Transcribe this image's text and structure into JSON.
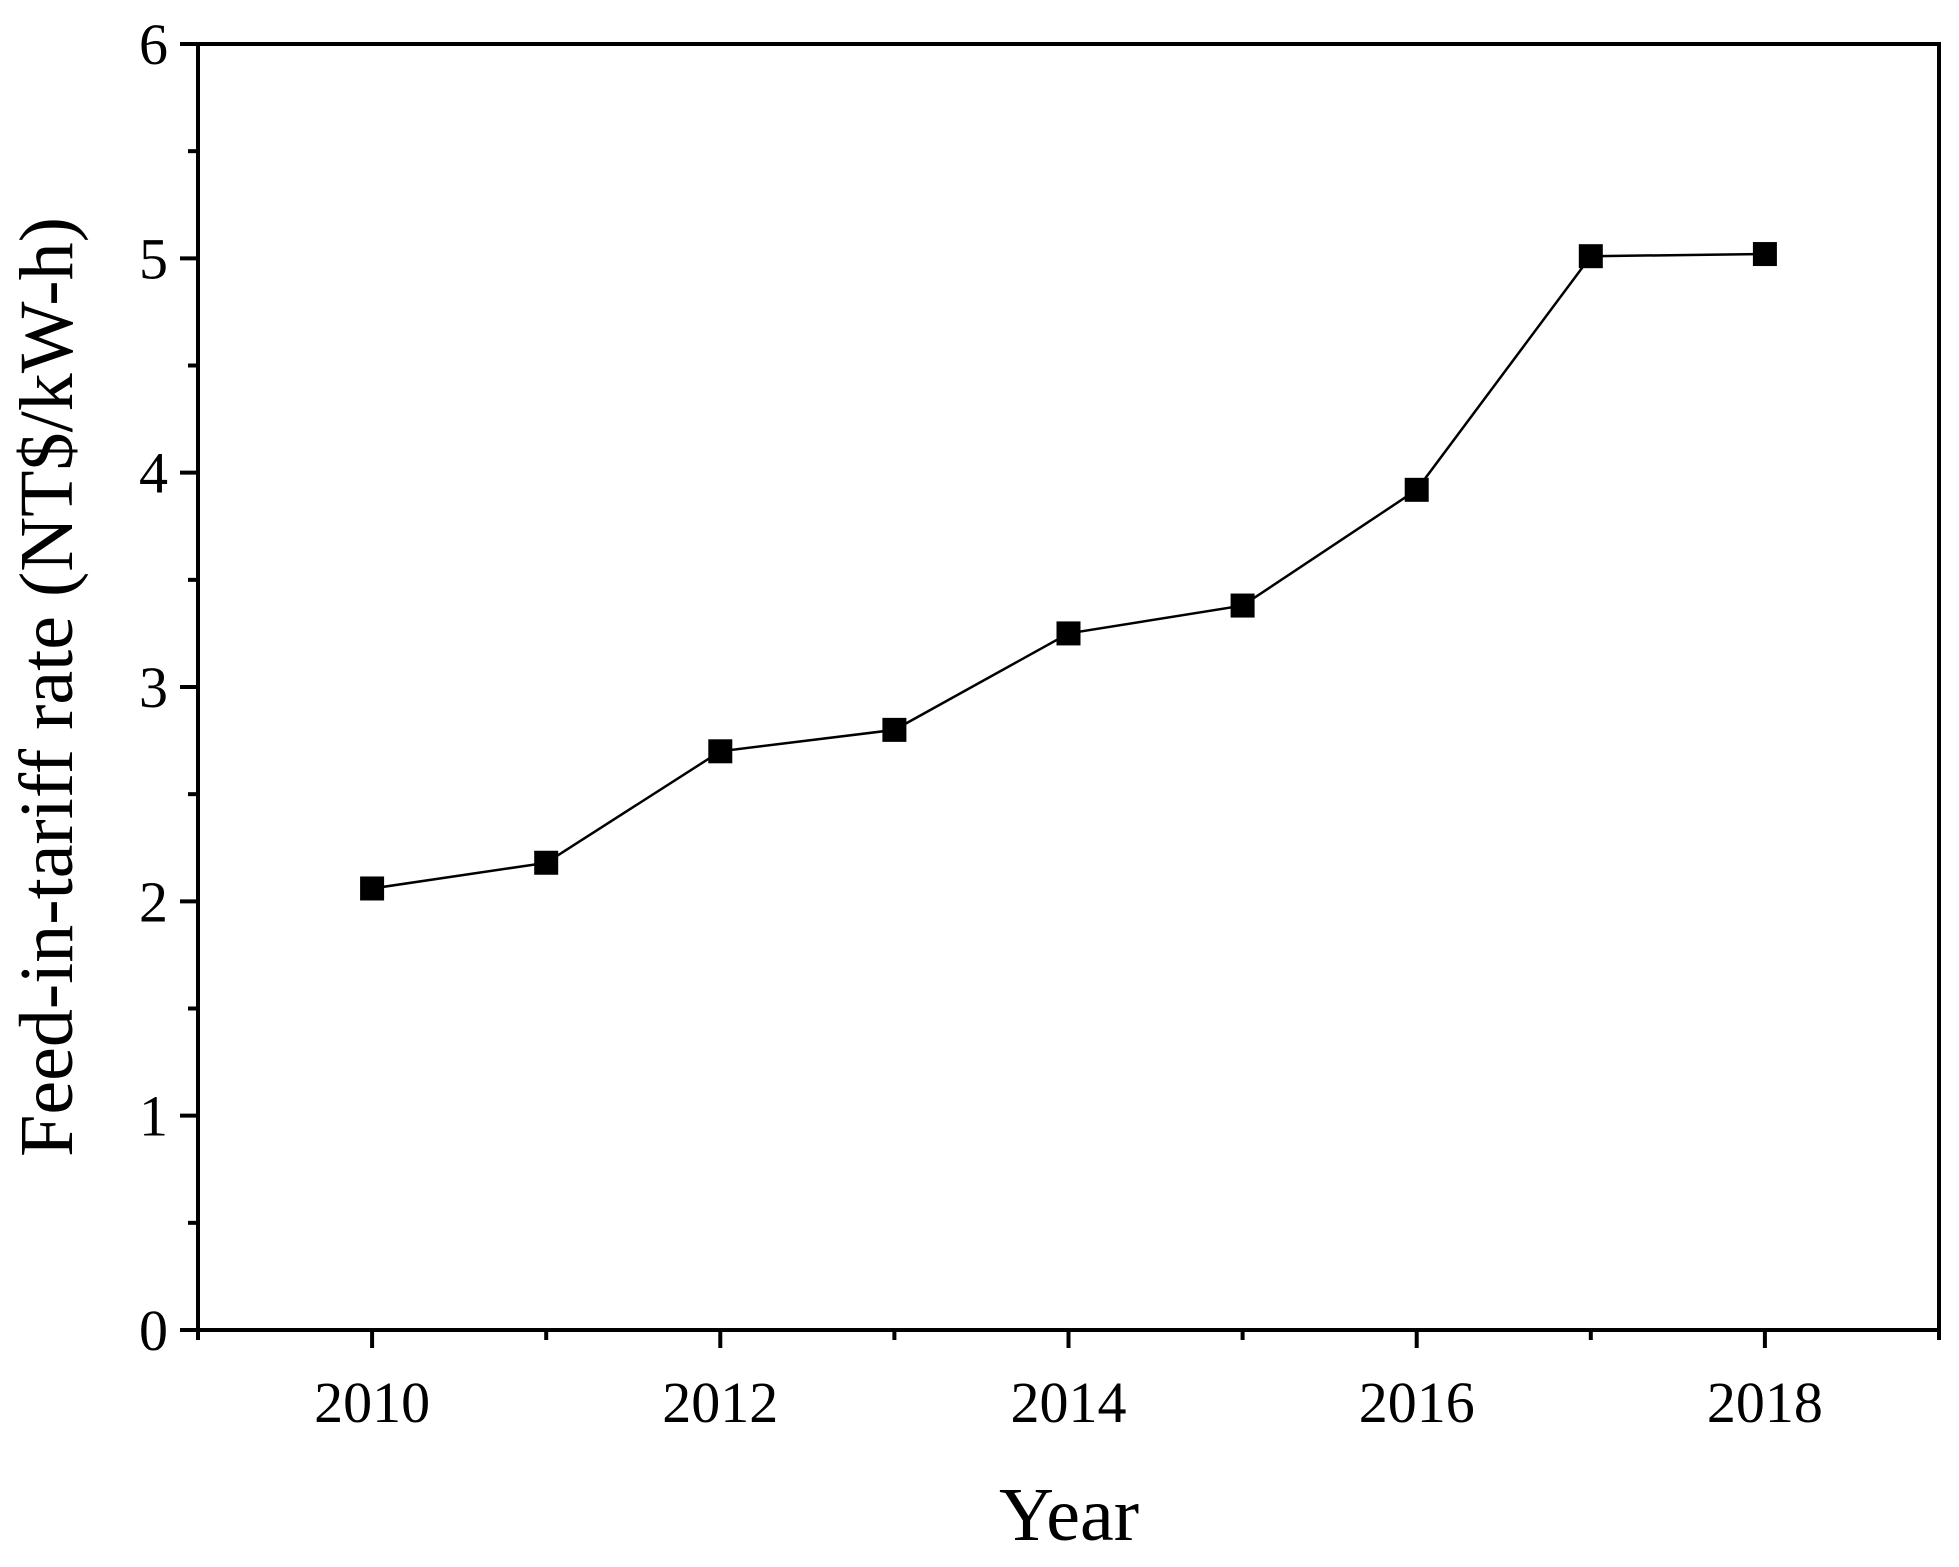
{
  "chart_data": {
    "type": "line",
    "title": "",
    "xlabel": "Year",
    "ylabel": "Feed-in-tariff rate (NT$/kW-h)",
    "xlim": [
      2009,
      2019
    ],
    "ylim": [
      0,
      6
    ],
    "x_major_ticks": [
      2010,
      2012,
      2014,
      2016,
      2018
    ],
    "x_minor_ticks": [
      2009,
      2011,
      2013,
      2015,
      2017,
      2019
    ],
    "y_major_ticks": [
      0,
      1,
      2,
      3,
      4,
      5,
      6
    ],
    "y_minor_ticks": [
      0.5,
      1.5,
      2.5,
      3.5,
      4.5,
      5.5
    ],
    "grid": false,
    "legend": "none",
    "marker": "square",
    "line_color": "#000000",
    "marker_color": "#000000",
    "series": [
      {
        "x": [
          2010,
          2011,
          2012,
          2013,
          2014,
          2015,
          2016,
          2017,
          2018
        ],
        "y": [
          2.06,
          2.18,
          2.7,
          2.8,
          3.25,
          3.38,
          3.92,
          5.01,
          5.02
        ]
      }
    ]
  }
}
